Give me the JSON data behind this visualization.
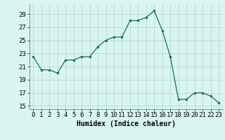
{
  "x": [
    0,
    1,
    2,
    3,
    4,
    5,
    6,
    7,
    8,
    9,
    10,
    11,
    12,
    13,
    14,
    15,
    16,
    17,
    18,
    19,
    20,
    21,
    22,
    23
  ],
  "y": [
    22.5,
    20.5,
    20.5,
    20.0,
    22.0,
    22.0,
    22.5,
    22.5,
    24.0,
    25.0,
    25.5,
    25.5,
    28.0,
    28.0,
    28.5,
    29.5,
    26.5,
    22.5,
    16.0,
    16.0,
    17.0,
    17.0,
    16.5,
    15.5
  ],
  "line_color": "#1a6b5a",
  "marker": "o",
  "marker_size": 2.0,
  "bg_color": "#d8f5f0",
  "grid_color": "#b8d8d0",
  "xlabel": "Humidex (Indice chaleur)",
  "xlim": [
    -0.5,
    23.5
  ],
  "ylim": [
    14.5,
    30.5
  ],
  "yticks": [
    15,
    17,
    19,
    21,
    23,
    25,
    27,
    29
  ],
  "xticks": [
    0,
    1,
    2,
    3,
    4,
    5,
    6,
    7,
    8,
    9,
    10,
    11,
    12,
    13,
    14,
    15,
    16,
    17,
    18,
    19,
    20,
    21,
    22,
    23
  ],
  "label_fontsize": 7,
  "tick_fontsize": 6.5
}
